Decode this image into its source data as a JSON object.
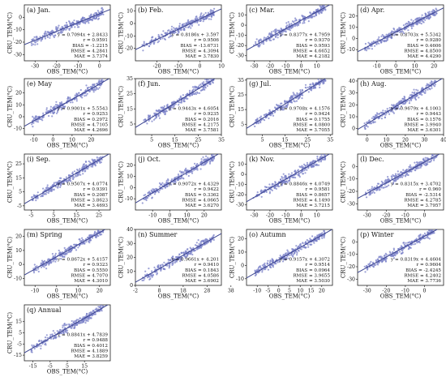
{
  "figure": {
    "x_axis_label": "OBS_TEM(°C)",
    "y_axis_label": "CRU_TEM(°C)",
    "point_color": "#7b82c8",
    "fit_color": "#3b4490",
    "axis_color": "#222222"
  },
  "chart_data": [
    {
      "type": "scatter",
      "title": "(a) Jan.",
      "xlabel": "OBS_TEM(°C)",
      "ylabel": "CRU_TEM(°C)",
      "xlim": [
        -35,
        5
      ],
      "ylim": [
        -35,
        10
      ],
      "xticks": [
        -30,
        -20,
        -10,
        0
      ],
      "yticks": [
        -30,
        -20,
        -10,
        0
      ],
      "fit": {
        "slope": 0.7094,
        "intercept": 2.8433
      },
      "stats": [
        "y = 0.7094x + 2.8433",
        "r = 0.9591",
        "BIAS = -1.2215",
        "RMSE = 4.2841",
        "MAE = 3.7374"
      ]
    },
    {
      "type": "scatter",
      "title": "(b) Feb.",
      "xlabel": "OBS_TEM(°C)",
      "ylabel": "CRU_TEM(°C)",
      "xlim": [
        -30,
        10
      ],
      "ylim": [
        -30,
        15
      ],
      "xticks": [
        -20,
        -10,
        0,
        10
      ],
      "yticks": [
        -20,
        -10,
        0,
        10
      ],
      "fit": {
        "slope": 0.8186,
        "intercept": 3.597
      },
      "stats": [
        "y = 0.8186x + 3.597",
        "r = 0.9506",
        "BIAS = -13.6731",
        "RMSE = 4.3094",
        "MAE = 3.7830"
      ]
    },
    {
      "type": "scatter",
      "title": "(c) Mar.",
      "xlabel": "OBS_TEM(°C)",
      "ylabel": "CRU_TEM(°C)",
      "xlim": [
        -35,
        20
      ],
      "ylim": [
        -35,
        20
      ],
      "xticks": [
        -30,
        -20,
        -10,
        0,
        10
      ],
      "yticks": [
        -30,
        -20,
        -10,
        0,
        10
      ],
      "fit": {
        "slope": 0.8377,
        "intercept": 4.7959
      },
      "stats": [
        "y = 0.8377x + 4.7959",
        "r = 0.9370",
        "BIAS = 0.9593",
        "RMSE = 4.6652",
        "MAE = 4.2182"
      ]
    },
    {
      "type": "scatter",
      "title": "(d) Apr.",
      "xlabel": "OBS_TEM(°C)",
      "ylabel": "CRU_TEM(°C)",
      "xlim": [
        -20,
        25
      ],
      "ylim": [
        -20,
        30
      ],
      "xticks": [
        -10,
        0,
        10,
        20
      ],
      "yticks": [
        -10,
        0,
        10,
        20
      ],
      "fit": {
        "slope": 0.8703,
        "intercept": 5.5342
      },
      "stats": [
        "y = 0.8703x + 5.5342",
        "r = 0.9280",
        "BIAS = 0.4606",
        "RMSE = 4.8500",
        "MAE = 4.4290"
      ]
    },
    {
      "type": "scatter",
      "title": "(e) May",
      "xlabel": "OBS_TEM(°C)",
      "ylabel": "CRU_TEM(°C)",
      "xlim": [
        -15,
        30
      ],
      "ylim": [
        -15,
        32
      ],
      "xticks": [
        -10,
        0,
        10,
        20
      ],
      "yticks": [
        -10,
        0,
        10,
        20
      ],
      "fit": {
        "slope": 0.9001,
        "intercept": 5.5543
      },
      "stats": [
        "y = 0.9001x + 5.5543",
        "r = 0.9253",
        "BIAS = 0.2972",
        "RMSE = 4.7105",
        "MAE = 4.2696"
      ]
    },
    {
      "type": "scatter",
      "title": "(f) Jun.",
      "xlabel": "OBS_TEM(°C)",
      "ylabel": "CRU_TEM(°C)",
      "xlim": [
        -2,
        35
      ],
      "ylim": [
        -2,
        35
      ],
      "xticks": [
        5,
        15,
        25,
        35
      ],
      "yticks": [
        5,
        15,
        25,
        35
      ],
      "fit": {
        "slope": 0.9443,
        "intercept": 4.6054
      },
      "stats": [
        "y = 0.9443x + 4.6054",
        "r = 0.9235",
        "BIAS = 0.2016",
        "RMSE = 4.2175",
        "MAE = 3.7581"
      ]
    },
    {
      "type": "scatter",
      "title": "(g) Jul.",
      "xlabel": "OBS_TEM(°C)",
      "ylabel": "CRU_TEM(°C)",
      "xlim": [
        -2,
        36
      ],
      "ylim": [
        -2,
        36
      ],
      "xticks": [
        5,
        15,
        25,
        35
      ],
      "yticks": [
        5,
        15,
        25,
        35
      ],
      "fit": {
        "slope": 0.9708,
        "intercept": 4.1576
      },
      "stats": [
        "y = 0.9708x + 4.1576",
        "r = 0.9424",
        "BIAS = 0.1755",
        "RMSE = 4.0800",
        "MAE = 3.7055"
      ]
    },
    {
      "type": "scatter",
      "title": "(h) Aug.",
      "xlabel": "OBS_TEM(°C)",
      "ylabel": "CRU_TEM(°C)",
      "xlim": [
        -5,
        40
      ],
      "ylim": [
        -5,
        42
      ],
      "xticks": [
        0,
        10,
        20,
        30,
        40
      ],
      "yticks": [
        0,
        10,
        20,
        30,
        40
      ],
      "fit": {
        "slope": 0.9679,
        "intercept": 4.1003
      },
      "stats": [
        "y = 0.9679x + 4.1003",
        "r = 0.9443",
        "BIAS = 0.1576",
        "RMSE = 3.9940",
        "MAE = 3.6301"
      ]
    },
    {
      "type": "scatter",
      "title": "(i) Sep.",
      "xlabel": "OBS_TEM(°C)",
      "ylabel": "CRU_TEM(°C)",
      "xlim": [
        -8,
        30
      ],
      "ylim": [
        -8,
        32
      ],
      "xticks": [
        -5,
        5,
        15,
        25
      ],
      "yticks": [
        -5,
        5,
        15,
        25
      ],
      "fit": {
        "slope": 0.9507,
        "intercept": 4.0774
      },
      "stats": [
        "y = 0.9507x + 4.0774",
        "r = 0.9391",
        "BIAS = 0.2087",
        "RMSE = 3.8623",
        "MAE = 3.4693"
      ]
    },
    {
      "type": "scatter",
      "title": "(j) Oct.",
      "xlabel": "OBS_TEM(°C)",
      "ylabel": "CRU_TEM(°C)",
      "xlim": [
        -20,
        30
      ],
      "ylim": [
        -20,
        30
      ],
      "xticks": [
        -10,
        0,
        10,
        20
      ],
      "yticks": [
        -10,
        0,
        10,
        20
      ],
      "fit": {
        "slope": 0.9072,
        "intercept": 4.4329
      },
      "stats": [
        "y = 0.9072x + 4.4329",
        "r = 0.9422",
        "BIAS = 0.3362",
        "RMSE = 4.0665",
        "MAE = 3.6270"
      ]
    },
    {
      "type": "scatter",
      "title": "(k) Nov.",
      "xlabel": "OBS_TEM(°C)",
      "ylabel": "CRU_TEM(°C)",
      "xlim": [
        -35,
        20
      ],
      "ylim": [
        -35,
        20
      ],
      "xticks": [
        -30,
        -20,
        -10,
        0,
        10
      ],
      "yticks": [
        -30,
        -20,
        -10,
        0,
        10
      ],
      "fit": {
        "slope": 0.8846,
        "intercept": 4.0749
      },
      "stats": [
        "y = 0.8846x + 4.0749",
        "r = 0.9581",
        "BIAS = 0.8657",
        "RMSE = 4.1490",
        "MAE = 3.7215"
      ]
    },
    {
      "type": "scatter",
      "title": "(l) Dec.",
      "xlabel": "OBS_TEM(°C)",
      "ylabel": "CRU_TEM(°C)",
      "xlim": [
        -35,
        10
      ],
      "ylim": [
        -35,
        10
      ],
      "xticks": [
        -30,
        -20,
        -10,
        0
      ],
      "yticks": [
        -30,
        -20,
        -10,
        0
      ],
      "fit": {
        "slope": 0.8315,
        "intercept": 3.4702
      },
      "stats": [
        "y = 0.8315x + 3.4702",
        "r = 0.960",
        "BIAS = -2.5314",
        "RMSE = 4.2785",
        "MAE = 3.7957"
      ]
    },
    {
      "type": "scatter",
      "title": "(m) Spring",
      "xlabel": "OBS_TEM(°C)",
      "ylabel": "CRU_TEM(°C)",
      "xlim": [
        -15,
        25
      ],
      "ylim": [
        -15,
        25
      ],
      "xticks": [
        -10,
        0,
        10,
        20
      ],
      "yticks": [
        -10,
        0,
        10,
        20
      ],
      "fit": {
        "slope": 0.8672,
        "intercept": 5.4157
      },
      "stats": [
        "y = 0.8672x + 5.4157",
        "r = 0.9323",
        "BIAS = 0.5550",
        "RMSE = 4.7070",
        "MAE = 4.3010"
      ]
    },
    {
      "type": "scatter",
      "title": "(n) Summer",
      "xlabel": "OBS_TEM(°C)",
      "ylabel": "CRU_TEM(°C)",
      "xlim": [
        -2,
        34
      ],
      "ylim": [
        0,
        40
      ],
      "xticks": [
        -2,
        8,
        18,
        28,
        38
      ],
      "yticks": [
        0,
        10,
        20,
        30,
        40
      ],
      "fit": {
        "slope": 0.9661,
        "intercept": 4.201
      },
      "stats": [
        "y = 0.9661x + 4.201",
        "r = 0.9410",
        "BIAS = 0.1843",
        "RMSE = 4.0586",
        "MAE = 3.6902"
      ]
    },
    {
      "type": "scatter",
      "title": "(o) Autumn",
      "xlabel": "OBS_TEM(°C)",
      "ylabel": "CRU_TEM(°C)",
      "xlim": [
        -15,
        25
      ],
      "ylim": [
        -15,
        27
      ],
      "xticks": [
        -10,
        -5,
        0,
        5,
        10,
        15,
        20
      ],
      "yticks": [
        -10,
        0,
        10,
        20
      ],
      "fit": {
        "slope": 0.9157,
        "intercept": 4.3072
      },
      "stats": [
        "y = 0.9157x + 4.3072",
        "r = 0.9514",
        "BIAS = 0.0964",
        "RMSE = 3.9655",
        "MAE = 3.5030"
      ]
    },
    {
      "type": "scatter",
      "title": "(p) Winter",
      "xlabel": "OBS_TEM(°C)",
      "ylabel": "CRU_TEM(°C)",
      "xlim": [
        -35,
        10
      ],
      "ylim": [
        -35,
        10
      ],
      "xticks": [
        -30,
        -20,
        -10,
        0
      ],
      "yticks": [
        -30,
        -20,
        -10,
        0
      ],
      "fit": {
        "slope": 0.8319,
        "intercept": 4.4604
      },
      "stats": [
        "y = 0.8319x + 4.4604",
        "r = 0.9604",
        "BIAS = -2.4245",
        "RMSE = 4.2402",
        "MAE = 3.7736"
      ]
    },
    {
      "type": "scatter",
      "title": "(q) Annual",
      "xlabel": "OBS_TEM(°C)",
      "ylabel": "CRU_TEM(°C)",
      "xlim": [
        -20,
        30
      ],
      "ylim": [
        -20,
        30
      ],
      "xticks": [
        -15,
        -5,
        5,
        15
      ],
      "yticks": [
        -15,
        -5,
        5,
        15
      ],
      "fit": {
        "slope": 0.8841,
        "intercept": 4.7839
      },
      "stats": [
        "y = 0.8841x + 4.7839",
        "r = 0.9488",
        "BIAS = 0.4012",
        "RMSE = 4.1889",
        "MAE = 3.8259"
      ]
    }
  ]
}
